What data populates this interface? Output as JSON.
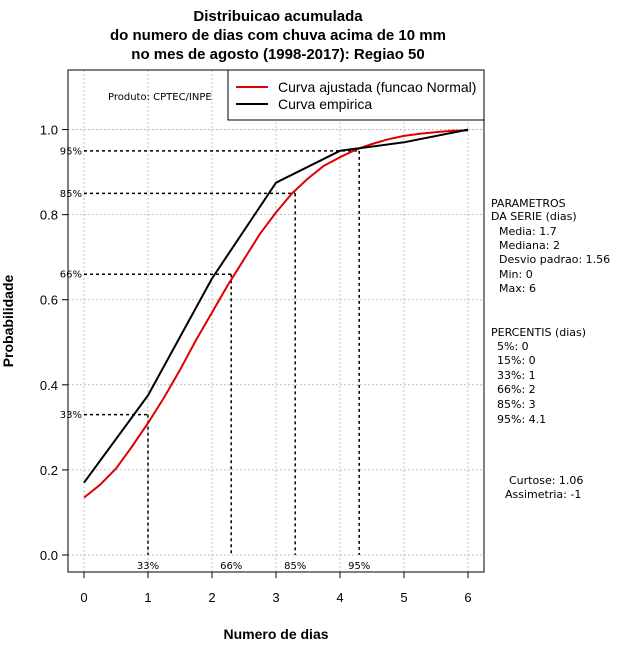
{
  "chart_data": {
    "type": "line",
    "title_lines": [
      "Distribuicao acumulada",
      "do numero de dias com chuva acima de 10 mm",
      "no mes de agosto (1998-2017): Regiao 50"
    ],
    "xlabel": "Numero de dias",
    "ylabel": "Probabilidade",
    "xlim": [
      -0.25,
      6.25
    ],
    "ylim": [
      -0.04,
      1.14
    ],
    "x_ticks": [
      "0",
      "1",
      "2",
      "3",
      "4",
      "5",
      "6"
    ],
    "y_ticks": [
      "0.0",
      "0.2",
      "0.4",
      "0.6",
      "0.8",
      "1.0"
    ],
    "grid": true,
    "product_label": "Produto: CPTEC/INPE",
    "legend": {
      "position": "top-right",
      "entries": [
        {
          "label": "Curva ajustada (funcao Normal)",
          "color": "#e00000"
        },
        {
          "label": "Curva empirica",
          "color": "#000000"
        }
      ]
    },
    "series": [
      {
        "name": "Curva ajustada (funcao Normal)",
        "color": "#e00000",
        "x": [
          0,
          0.25,
          0.5,
          0.75,
          1,
          1.25,
          1.5,
          1.75,
          2,
          2.25,
          2.5,
          2.75,
          3,
          3.25,
          3.5,
          3.75,
          4,
          4.25,
          4.5,
          4.75,
          5,
          5.25,
          5.5,
          5.75,
          6
        ],
        "y": [
          0.135,
          0.165,
          0.203,
          0.255,
          0.31,
          0.37,
          0.435,
          0.505,
          0.57,
          0.635,
          0.695,
          0.755,
          0.805,
          0.85,
          0.885,
          0.915,
          0.935,
          0.953,
          0.966,
          0.977,
          0.985,
          0.99,
          0.994,
          0.997,
          0.998
        ]
      },
      {
        "name": "Curva empirica",
        "color": "#000000",
        "x": [
          0,
          1,
          2,
          3,
          4,
          5,
          6
        ],
        "y": [
          0.17,
          0.375,
          0.65,
          0.875,
          0.95,
          0.97,
          1.0
        ]
      }
    ],
    "percentile_markers": [
      {
        "label": "33%",
        "prob": 0.33,
        "x": 1.0
      },
      {
        "label": "66%",
        "prob": 0.66,
        "x": 2.3
      },
      {
        "label": "85%",
        "prob": 0.85,
        "x": 3.3
      },
      {
        "label": "95%",
        "prob": 0.95,
        "x": 4.3
      }
    ],
    "side_panel": {
      "parametros_header": [
        "PARAMETROS",
        "DA SERIE (dias)"
      ],
      "parametros": [
        "Media: 1.7",
        "Mediana: 2",
        "Desvio padrao: 1.56",
        "Min: 0",
        "Max: 6"
      ],
      "percentis_header": "PERCENTIS (dias)",
      "percentis": [
        "5%: 0",
        "15%: 0",
        "33%: 1",
        "66%: 2",
        "85%: 3",
        "95%: 4.1"
      ],
      "curtose": "Curtose: 1.06",
      "assimetria": "Assimetria: -1"
    }
  }
}
